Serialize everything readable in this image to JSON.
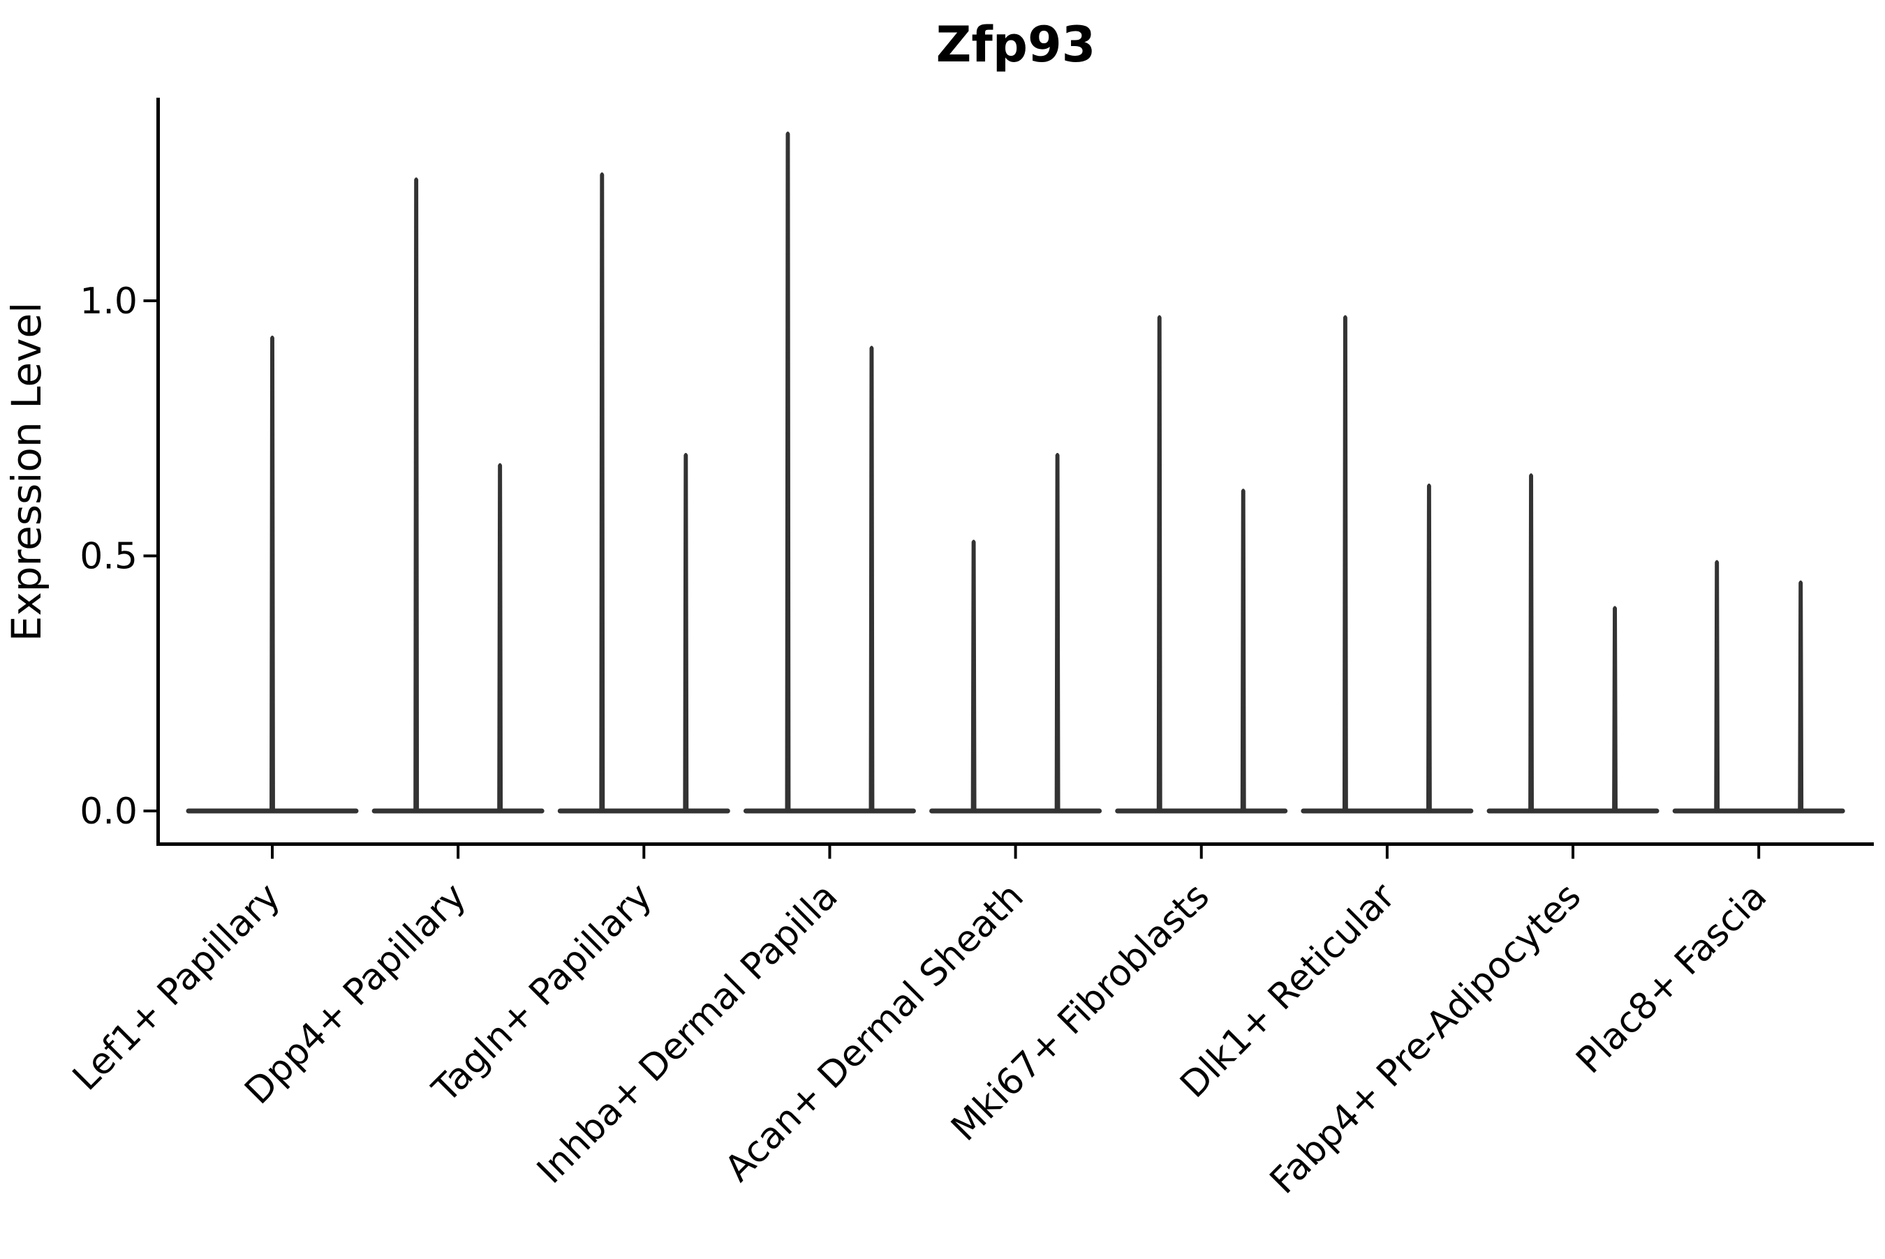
{
  "title": "Zfp93",
  "chart_data": {
    "type": "violin",
    "title": "Zfp93",
    "ylabel": "Expression Level",
    "xlabel": "",
    "categories": [
      "Lef1+ Papillary",
      "Dpp4+ Papillary",
      "Tagln+ Papillary",
      "Inhba+ Dermal Papilla",
      "Acan+ Dermal Sheath",
      "Mki67+ Fibroblasts",
      "Dlk1+ Reticular",
      "Fabp4+ Pre-Adipocytes",
      "Plac8+ Fascia"
    ],
    "series": [
      {
        "name": "expression-peak-maxima",
        "description": "max expression reached by each thin violin spike; one spike for first category, two side-by-side spikes for all others; all violins have a wide flat base at 0.0",
        "values": [
          [
            0.93
          ],
          [
            1.24,
            0.68
          ],
          [
            1.25,
            0.7
          ],
          [
            1.33,
            0.91
          ],
          [
            0.53,
            0.7
          ],
          [
            0.97,
            0.63
          ],
          [
            0.97,
            0.64
          ],
          [
            0.66,
            0.4
          ],
          [
            0.49,
            0.45
          ]
        ]
      }
    ],
    "y_ticks": [
      {
        "label": "0.0",
        "value": 0.0
      },
      {
        "label": "0.5",
        "value": 0.5
      },
      {
        "label": "1.0",
        "value": 1.0
      }
    ],
    "ylim": [
      -0.065,
      1.395
    ],
    "baseline_value": 0.0,
    "grid": false,
    "legend": "none",
    "violin_color": "#333333",
    "axis_color": "#000000",
    "background_color": "#ffffff",
    "x_tick_label_rotation_deg": 45
  }
}
